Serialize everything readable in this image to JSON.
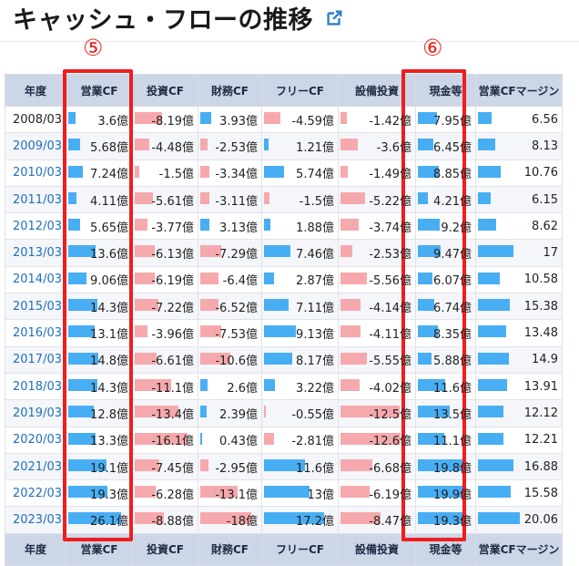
{
  "title": "キャッシュ・フローの推移",
  "markers": {
    "five": "⑤",
    "six": "⑥"
  },
  "headers": [
    "年度",
    "営業CF",
    "投資CF",
    "財務CF",
    "フリーCF",
    "設備投資",
    "現金等",
    "営業CFマージン"
  ],
  "colors": {
    "pos_bar": "#48aef3",
    "neg_bar": "#f6a9ad",
    "highlight": "#ee1e1e",
    "header_bg": "#cdd6e6",
    "link": "#1f6fbd"
  },
  "icons": {
    "title_link": "external-link-icon"
  },
  "rows": [
    {
      "year": "2008/03",
      "link": false,
      "cells": [
        "3.6億",
        "-8.19億",
        "3.93億",
        "-4.59億",
        "-1.42億",
        "7.95億",
        "6.56"
      ]
    },
    {
      "year": "2009/03",
      "link": true,
      "cells": [
        "5.68億",
        "-4.48億",
        "-2.53億",
        "1.21億",
        "-3.6億",
        "6.45億",
        "8.13"
      ]
    },
    {
      "year": "2010/03",
      "link": true,
      "cells": [
        "7.24億",
        "-1.5億",
        "-3.34億",
        "5.74億",
        "-1.49億",
        "8.85億",
        "10.76"
      ]
    },
    {
      "year": "2011/03",
      "link": true,
      "cells": [
        "4.11億",
        "-5.61億",
        "-3.11億",
        "-1.5億",
        "-5.22億",
        "4.21億",
        "6.15"
      ]
    },
    {
      "year": "2012/03",
      "link": true,
      "cells": [
        "5.65億",
        "-3.77億",
        "3.13億",
        "1.88億",
        "-3.74億",
        "9.2億",
        "8.62"
      ]
    },
    {
      "year": "2013/03",
      "link": true,
      "cells": [
        "13.6億",
        "-6.13億",
        "-7.29億",
        "7.46億",
        "-2.53億",
        "9.47億",
        "17"
      ]
    },
    {
      "year": "2014/03",
      "link": true,
      "cells": [
        "9.06億",
        "-6.19億",
        "-6.4億",
        "2.87億",
        "-5.56億",
        "6.07億",
        "10.58"
      ]
    },
    {
      "year": "2015/03",
      "link": true,
      "cells": [
        "14.3億",
        "-7.22億",
        "-6.52億",
        "7.11億",
        "-4.14億",
        "6.74億",
        "15.38"
      ]
    },
    {
      "year": "2016/03",
      "link": true,
      "cells": [
        "13.1億",
        "-3.96億",
        "-7.53億",
        "9.13億",
        "-4.11億",
        "8.35億",
        "13.48"
      ]
    },
    {
      "year": "2017/03",
      "link": true,
      "cells": [
        "14.8億",
        "-6.61億",
        "-10.6億",
        "8.17億",
        "-5.55億",
        "5.88億",
        "14.9"
      ]
    },
    {
      "year": "2018/03",
      "link": true,
      "cells": [
        "14.3億",
        "-11.1億",
        "2.6億",
        "3.22億",
        "-4.02億",
        "11.6億",
        "13.91"
      ]
    },
    {
      "year": "2019/03",
      "link": true,
      "cells": [
        "12.8億",
        "-13.4億",
        "2.39億",
        "-0.55億",
        "-12.5億",
        "13.5億",
        "12.12"
      ]
    },
    {
      "year": "2020/03",
      "link": true,
      "cells": [
        "13.3億",
        "-16.1億",
        "0.43億",
        "-2.81億",
        "-12.6億",
        "11.1億",
        "12.21"
      ]
    },
    {
      "year": "2021/03",
      "link": true,
      "cells": [
        "19.1億",
        "-7.45億",
        "-2.95億",
        "11.6億",
        "-6.68億",
        "19.8億",
        "16.88"
      ]
    },
    {
      "year": "2022/03",
      "link": true,
      "cells": [
        "19.3億",
        "-6.28億",
        "-13.1億",
        "13億",
        "-6.19億",
        "19.9億",
        "15.58"
      ]
    },
    {
      "year": "2023/03",
      "link": true,
      "cells": [
        "26.1億",
        "-8.88億",
        "-18億",
        "17.2億",
        "-8.47億",
        "19.3億",
        "20.06"
      ]
    }
  ]
}
